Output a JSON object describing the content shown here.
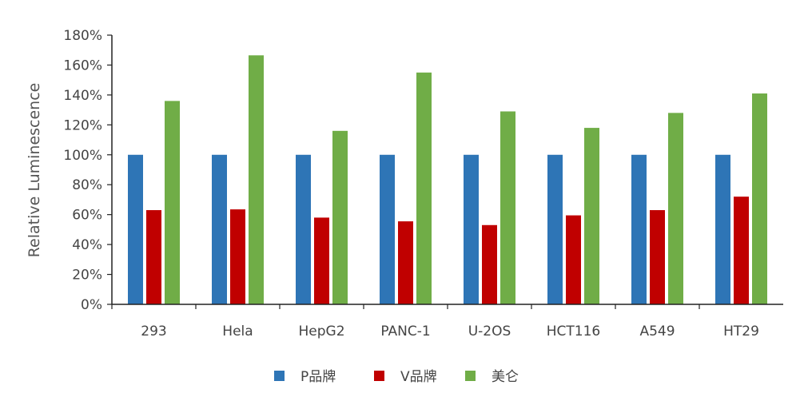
{
  "chart_data": {
    "type": "bar",
    "ylabel": "Relative Luminescence",
    "xlabel": "",
    "ylim": [
      0,
      180
    ],
    "y_ticks": [
      "0%",
      "20%",
      "40%",
      "60%",
      "80%",
      "100%",
      "120%",
      "140%",
      "160%",
      "180%"
    ],
    "categories": [
      "293",
      "Hela",
      "HepG2",
      "PANC-1",
      "U-2OS",
      "HCT116",
      "A549",
      "HT29"
    ],
    "series": [
      {
        "name": "P品牌",
        "color": "#2E75B6",
        "values": [
          100,
          100,
          100,
          100,
          100,
          100,
          100,
          100
        ]
      },
      {
        "name": "V品牌",
        "color": "#C00000",
        "values": [
          63,
          63.5,
          58,
          55.5,
          53,
          59.5,
          63,
          72
        ]
      },
      {
        "name": "美仑",
        "color": "#70AD47",
        "values": [
          136,
          166.5,
          116,
          155,
          129,
          118,
          128,
          141
        ]
      }
    ],
    "grid": false,
    "legend_position": "bottom"
  }
}
